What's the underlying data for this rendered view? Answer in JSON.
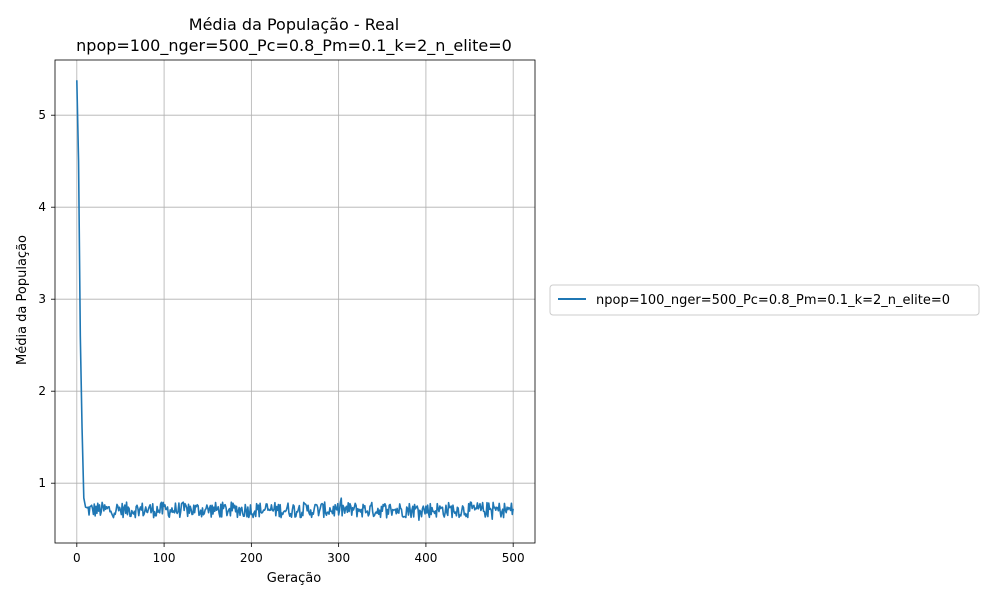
{
  "chart_data": {
    "type": "line",
    "title_line1": "Média da População - Real",
    "title_line2": "npop=100_nger=500_Pc=0.8_Pm=0.1_k=2_n_elite=0",
    "xlabel": "Geração",
    "ylabel": "Média da População",
    "xlim": [
      -25,
      525
    ],
    "ylim": [
      0.35,
      5.6
    ],
    "xticks": [
      0,
      100,
      200,
      300,
      400,
      500
    ],
    "yticks": [
      1,
      2,
      3,
      4,
      5
    ],
    "grid": true,
    "legend_position": "outside-right",
    "series": [
      {
        "name": "npop=100_nger=500_Pc=0.8_Pm=0.1_k=2_n_elite=0",
        "color": "#1f77b4",
        "head": [
          [
            0,
            5.38
          ],
          [
            2,
            4.5
          ],
          [
            4,
            2.6
          ],
          [
            6,
            1.6
          ],
          [
            8,
            0.84
          ],
          [
            10,
            0.74
          ]
        ],
        "tail_start": 11,
        "tail_end": 500,
        "tail_mean": 0.71,
        "tail_amplitude": 0.085
      }
    ]
  }
}
